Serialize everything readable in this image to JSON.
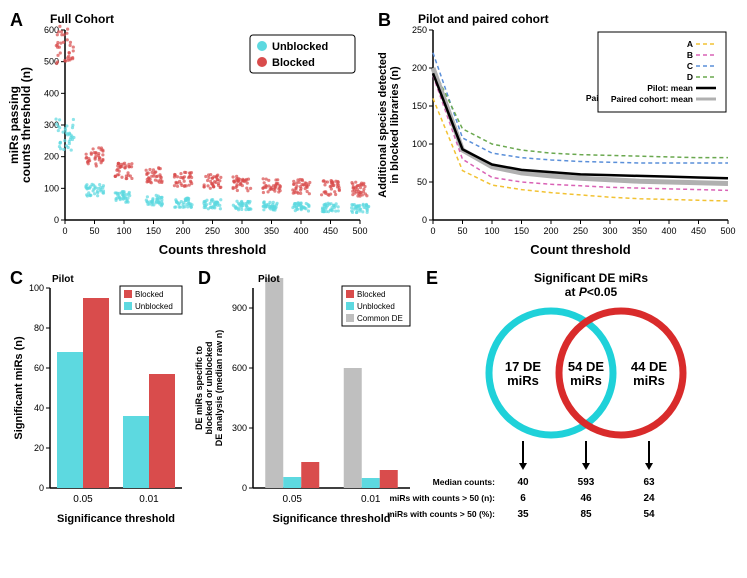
{
  "panelA": {
    "label": "A",
    "title": "Full Cohort",
    "type": "scatter",
    "x_axis_label": "Counts threshold",
    "y_axis_label": "miRs passing\ncounts threshold (n)",
    "xlim": [
      0,
      500
    ],
    "ylim": [
      0,
      600
    ],
    "xticks": [
      0,
      50,
      100,
      150,
      200,
      250,
      300,
      350,
      400,
      450,
      500
    ],
    "yticks": [
      0,
      100,
      200,
      300,
      400,
      500,
      600
    ],
    "legend": [
      {
        "label": "Unblocked",
        "color": "#5dd9e0"
      },
      {
        "label": "Blocked",
        "color": "#d94c4c"
      }
    ],
    "series": [
      {
        "color": "#5dd9e0",
        "clusters": [
          {
            "x": 0,
            "ymin": 220,
            "ymax": 320
          },
          {
            "x": 50,
            "ymin": 75,
            "ymax": 115
          },
          {
            "x": 100,
            "ymin": 55,
            "ymax": 90
          },
          {
            "x": 150,
            "ymin": 45,
            "ymax": 78
          },
          {
            "x": 200,
            "ymin": 40,
            "ymax": 70
          },
          {
            "x": 250,
            "ymin": 35,
            "ymax": 65
          },
          {
            "x": 300,
            "ymin": 32,
            "ymax": 60
          },
          {
            "x": 350,
            "ymin": 30,
            "ymax": 58
          },
          {
            "x": 400,
            "ymin": 28,
            "ymax": 55
          },
          {
            "x": 450,
            "ymin": 25,
            "ymax": 53
          },
          {
            "x": 500,
            "ymin": 23,
            "ymax": 50
          }
        ]
      },
      {
        "color": "#d94c4c",
        "clusters": [
          {
            "x": 0,
            "ymin": 490,
            "ymax": 620
          },
          {
            "x": 50,
            "ymin": 170,
            "ymax": 230
          },
          {
            "x": 100,
            "ymin": 130,
            "ymax": 180
          },
          {
            "x": 150,
            "ymin": 115,
            "ymax": 165
          },
          {
            "x": 200,
            "ymin": 105,
            "ymax": 155
          },
          {
            "x": 250,
            "ymin": 98,
            "ymax": 145
          },
          {
            "x": 300,
            "ymin": 92,
            "ymax": 140
          },
          {
            "x": 350,
            "ymin": 86,
            "ymax": 135
          },
          {
            "x": 400,
            "ymin": 82,
            "ymax": 130
          },
          {
            "x": 450,
            "ymin": 78,
            "ymax": 125
          },
          {
            "x": 500,
            "ymin": 74,
            "ymax": 120
          }
        ]
      }
    ],
    "background_color": "#ffffff",
    "axis_color": "#000000"
  },
  "panelB": {
    "label": "B",
    "title": "Pilot and paired cohort",
    "type": "line",
    "x_axis_label": "Count threshold",
    "y_axis_label": "Additional species detected\nin blocked libraries (n)",
    "xlim": [
      0,
      500
    ],
    "ylim": [
      0,
      250
    ],
    "xticks": [
      0,
      50,
      100,
      150,
      200,
      250,
      300,
      350,
      400,
      450,
      500
    ],
    "yticks": [
      0,
      50,
      100,
      150,
      200,
      250
    ],
    "legend": [
      {
        "label": "A",
        "color": "#f2c233",
        "dash": "4,3",
        "width": 1.5
      },
      {
        "label": "B",
        "color": "#d962b5",
        "dash": "4,3",
        "width": 1.5
      },
      {
        "label": "C",
        "color": "#5a8fd9",
        "dash": "4,3",
        "width": 1.5
      },
      {
        "label": "D",
        "color": "#6aa84f",
        "dash": "4,3",
        "width": 1.5
      },
      {
        "label": "Pilot: mean",
        "color": "#000000",
        "dash": "none",
        "width": 2.5
      },
      {
        "label": "Paired cohort: mean",
        "color": "#b0b0b0",
        "dash": "none",
        "width": 4
      }
    ],
    "series": [
      {
        "color": "#f2c233",
        "dash": "4,3",
        "width": 1.5,
        "points": [
          [
            0,
            160
          ],
          [
            50,
            65
          ],
          [
            100,
            46
          ],
          [
            150,
            40
          ],
          [
            200,
            36
          ],
          [
            250,
            33
          ],
          [
            300,
            30
          ],
          [
            350,
            28
          ],
          [
            400,
            27
          ],
          [
            450,
            26
          ],
          [
            500,
            25
          ]
        ]
      },
      {
        "color": "#d962b5",
        "dash": "4,3",
        "width": 1.5,
        "points": [
          [
            0,
            190
          ],
          [
            50,
            80
          ],
          [
            100,
            56
          ],
          [
            150,
            50
          ],
          [
            200,
            47
          ],
          [
            250,
            45
          ],
          [
            300,
            43
          ],
          [
            350,
            42
          ],
          [
            400,
            41
          ],
          [
            450,
            40
          ],
          [
            500,
            39
          ]
        ]
      },
      {
        "color": "#5a8fd9",
        "dash": "4,3",
        "width": 1.5,
        "points": [
          [
            0,
            220
          ],
          [
            50,
            108
          ],
          [
            100,
            88
          ],
          [
            150,
            82
          ],
          [
            200,
            79
          ],
          [
            250,
            77
          ],
          [
            300,
            76
          ],
          [
            350,
            75
          ],
          [
            400,
            75
          ],
          [
            450,
            75
          ],
          [
            500,
            75
          ]
        ]
      },
      {
        "color": "#6aa84f",
        "dash": "4,3",
        "width": 1.5,
        "points": [
          [
            0,
            200
          ],
          [
            50,
            120
          ],
          [
            100,
            100
          ],
          [
            150,
            92
          ],
          [
            200,
            88
          ],
          [
            250,
            86
          ],
          [
            300,
            85
          ],
          [
            350,
            84
          ],
          [
            400,
            83
          ],
          [
            450,
            82
          ],
          [
            500,
            82
          ]
        ]
      },
      {
        "color": "#b0b0b0",
        "dash": "none",
        "width": 5,
        "points": [
          [
            0,
            200
          ],
          [
            50,
            92
          ],
          [
            100,
            70
          ],
          [
            150,
            62
          ],
          [
            200,
            58
          ],
          [
            250,
            55
          ],
          [
            300,
            53
          ],
          [
            350,
            51
          ],
          [
            400,
            50
          ],
          [
            450,
            49
          ],
          [
            500,
            48
          ]
        ]
      },
      {
        "color": "#000000",
        "dash": "none",
        "width": 2.5,
        "points": [
          [
            0,
            193
          ],
          [
            50,
            93
          ],
          [
            100,
            73
          ],
          [
            150,
            66
          ],
          [
            200,
            63
          ],
          [
            250,
            60
          ],
          [
            300,
            59
          ],
          [
            350,
            58
          ],
          [
            400,
            57
          ],
          [
            450,
            56
          ],
          [
            500,
            55
          ]
        ]
      }
    ],
    "background_color": "#ffffff"
  },
  "panelC": {
    "label": "C",
    "title": "Pilot",
    "type": "bar",
    "x_axis_label": "Significance threshold",
    "y_axis_label": "Significant miRs (n)",
    "categories": [
      "0.05",
      "0.01"
    ],
    "ylim": [
      0,
      100
    ],
    "yticks": [
      0,
      20,
      40,
      60,
      80,
      100
    ],
    "legend": [
      {
        "label": "Blocked",
        "color": "#d94c4c"
      },
      {
        "label": "Unblocked",
        "color": "#5dd9e0"
      }
    ],
    "groups": [
      {
        "cat": "0.05",
        "bars": [
          {
            "color": "#5dd9e0",
            "value": 68
          },
          {
            "color": "#d94c4c",
            "value": 95
          }
        ]
      },
      {
        "cat": "0.01",
        "bars": [
          {
            "color": "#5dd9e0",
            "value": 36
          },
          {
            "color": "#d94c4c",
            "value": 57
          }
        ]
      }
    ]
  },
  "panelD": {
    "label": "D",
    "title": "Pilot",
    "type": "bar",
    "x_axis_label": "Significance threshold",
    "y_axis_label": "DE miRs specific to\nblocked or unblocked\nDE analysis (median raw n)",
    "categories": [
      "0.05",
      "0.01"
    ],
    "ylim": [
      0,
      1000
    ],
    "yticks": [
      0,
      300,
      600,
      900
    ],
    "legend": [
      {
        "label": "Blocked",
        "color": "#d94c4c"
      },
      {
        "label": "Unblocked",
        "color": "#5dd9e0"
      },
      {
        "label": "Common DE",
        "color": "#bfbfbf"
      }
    ],
    "groups": [
      {
        "cat": "0.05",
        "bars": [
          {
            "color": "#bfbfbf",
            "value": 1050
          },
          {
            "color": "#5dd9e0",
            "value": 55
          },
          {
            "color": "#d94c4c",
            "value": 130
          }
        ]
      },
      {
        "cat": "0.01",
        "bars": [
          {
            "color": "#bfbfbf",
            "value": 600
          },
          {
            "color": "#5dd9e0",
            "value": 50
          },
          {
            "color": "#d94c4c",
            "value": 90
          }
        ]
      }
    ]
  },
  "panelE": {
    "label": "E",
    "title": "Significant DE miRs\nat P<0.05",
    "title_italic_part": "P",
    "type": "venn",
    "left": {
      "label": "17 DE\nmiRs",
      "color": "#1fd1d9",
      "stroke_width": 7
    },
    "center": {
      "label": "54 DE\nmiRs"
    },
    "right": {
      "label": "44 DE\nmiRs",
      "color": "#d92b2b",
      "stroke_width": 7
    },
    "table": {
      "rows": [
        {
          "label": "Median  counts:",
          "vals": [
            "40",
            "593",
            "63"
          ]
        },
        {
          "label": "miRs with counts > 50 (n):",
          "vals": [
            "6",
            "46",
            "24"
          ]
        },
        {
          "label": "miRs with counts > 50 (%):",
          "vals": [
            "35",
            "85",
            "54"
          ]
        }
      ]
    }
  }
}
